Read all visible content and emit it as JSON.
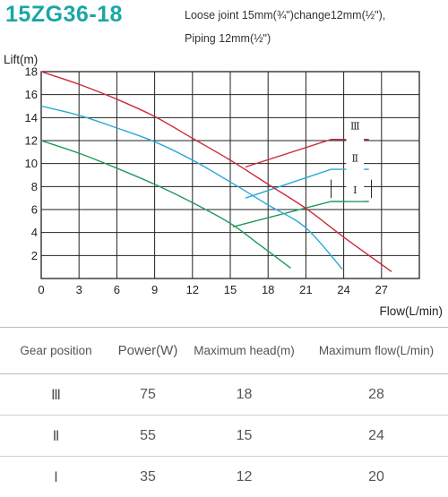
{
  "header": {
    "model": "15ZG36-18",
    "note_line1": "Loose joint 15mm(¾\")change12mm(½\"),",
    "note_line2": "Piping 12mm(½\")"
  },
  "chart_data": {
    "type": "line",
    "ylabel": "Lift(m)",
    "xlabel": "Flow(L/min)",
    "xlim": [
      0,
      30
    ],
    "ylim": [
      0,
      18
    ],
    "x_ticks": [
      0,
      3,
      6,
      9,
      12,
      15,
      18,
      21,
      24,
      27
    ],
    "y_ticks": [
      2,
      4,
      6,
      8,
      10,
      12,
      14,
      16,
      18
    ],
    "grid": true,
    "series": [
      {
        "name": "Ⅲ",
        "color": "#cc2a3a",
        "points": [
          [
            0,
            18
          ],
          [
            3,
            16.9
          ],
          [
            6,
            15.6
          ],
          [
            9,
            14.1
          ],
          [
            12,
            12.2
          ],
          [
            15,
            10.3
          ],
          [
            18,
            8.2
          ],
          [
            21,
            6.1
          ],
          [
            24,
            3.6
          ],
          [
            27.8,
            0.6
          ]
        ]
      },
      {
        "name": "Ⅱ",
        "color": "#29a9d6",
        "points": [
          [
            0,
            15
          ],
          [
            3,
            14.2
          ],
          [
            6,
            13.1
          ],
          [
            9,
            11.9
          ],
          [
            12,
            10.3
          ],
          [
            15,
            8.4
          ],
          [
            18,
            6.4
          ],
          [
            21,
            4.4
          ],
          [
            23.9,
            0.8
          ]
        ]
      },
      {
        "name": "Ⅰ",
        "color": "#1e9a5a",
        "points": [
          [
            0,
            12
          ],
          [
            3,
            10.9
          ],
          [
            6,
            9.6
          ],
          [
            9,
            8.2
          ],
          [
            12,
            6.6
          ],
          [
            15,
            4.8
          ],
          [
            17,
            3.2
          ],
          [
            19.8,
            0.9
          ]
        ]
      }
    ],
    "power_curves": [
      {
        "name": "Ⅲ",
        "color": "#cc2a3a",
        "points": [
          [
            16.2,
            9.7
          ],
          [
            23,
            12.1
          ],
          [
            26,
            12.1
          ]
        ]
      },
      {
        "name": "Ⅱ",
        "color": "#29a9d6",
        "points": [
          [
            16.2,
            7.0
          ],
          [
            23,
            9.5
          ],
          [
            26,
            9.5
          ]
        ]
      },
      {
        "name": "Ⅰ",
        "color": "#1e9a5a",
        "points": [
          [
            15.2,
            4.5
          ],
          [
            23,
            6.7
          ],
          [
            26,
            6.7
          ]
        ]
      }
    ],
    "gear_labels": [
      {
        "text": "Ⅲ",
        "x": 24.9,
        "y": 13.3
      },
      {
        "text": "Ⅱ",
        "x": 24.9,
        "y": 10.5
      },
      {
        "text": "Ⅰ",
        "x": 24.9,
        "y": 7.7
      }
    ]
  },
  "table": {
    "headers": [
      "Gear position",
      "Power(W)",
      "Maximum head(m)",
      "Maximum flow(L/min)"
    ],
    "rows": [
      [
        "Ⅲ",
        "75",
        "18",
        "28"
      ],
      [
        "Ⅱ",
        "55",
        "15",
        "24"
      ],
      [
        "Ⅰ",
        "35",
        "12",
        "20"
      ]
    ]
  }
}
